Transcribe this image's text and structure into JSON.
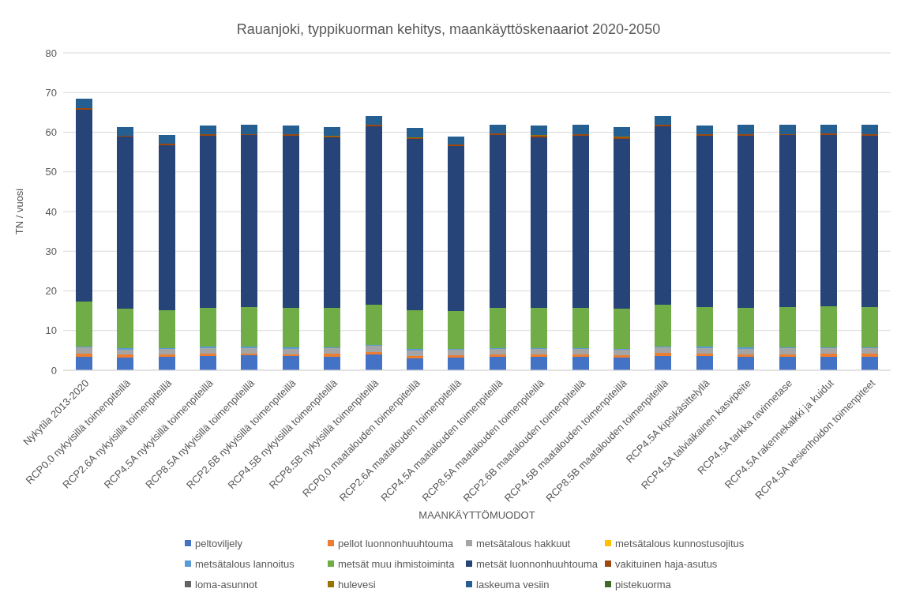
{
  "chart_data": {
    "type": "bar",
    "title": "Rauanjoki, typpikuorman kehitys, maankäyttöskenaariot 2020-2050",
    "xlabel": "MAANKÄYTTÖMUODOT",
    "ylabel": "TN / vuosi",
    "categories": [
      "Nykytila 2013-2020",
      "RCP0.0 nykyisillä toimenpiteillä",
      "RCP2.6A nykyisillä toimenpiteillä",
      "RCP4.5A nykyisillä toimenpiteillä",
      "RCP8.5A nykyisillä toimenpiteillä",
      "RCP2.6B nykyisillä toimenpiteillä",
      "RCP4.5B nykyisillä toimenpiteillä",
      "RCP8.5B nykyisillä toimenpiteillä",
      "RCP0.0 maatalouden toimenpiteillä",
      "RCP2.6A maatalouden toimenpiteillä",
      "RCP4.5A maatalouden toimenpiteillä",
      "RCP8.5A maatalouden toimenpiteillä",
      "RCP2.6B maatalouden toimenpiteillä",
      "RCP4.5B maatalouden toimenpiteillä",
      "RCP8.5B maatalouden toimenpiteillä",
      "RCP4.5A kipsikäsittelyllä",
      "RCP4.5A talviaikainen kasvipeite",
      "RCP4.5A tarkka ravinnetase",
      "RCP4.5A rakennekalkki ja kuidut",
      "RCP4.5A vesienhoidon toimenpiteet"
    ],
    "series": [
      {
        "name": "peltoviljely",
        "color": "#4472c4",
        "values": [
          3.3,
          3.1,
          3.4,
          3.5,
          3.7,
          3.5,
          3.4,
          4.0,
          3.0,
          3.2,
          3.3,
          3.3,
          3.3,
          3.1,
          3.6,
          3.5,
          3.3,
          3.4,
          3.4,
          3.4
        ]
      },
      {
        "name": "pellot luonnonhuuhtouma",
        "color": "#ed7d31",
        "values": [
          0.8,
          0.8,
          0.6,
          0.7,
          0.5,
          0.5,
          0.7,
          0.6,
          0.6,
          0.6,
          0.6,
          0.6,
          0.6,
          0.6,
          0.7,
          0.6,
          0.6,
          0.5,
          0.7,
          0.7
        ]
      },
      {
        "name": "metsätalous hakkuut",
        "color": "#a5a5a5",
        "values": [
          1.6,
          1.3,
          1.4,
          1.4,
          1.4,
          1.4,
          1.4,
          1.5,
          1.4,
          1.4,
          1.4,
          1.4,
          1.4,
          1.5,
          1.4,
          1.5,
          1.5,
          1.6,
          1.4,
          1.4
        ]
      },
      {
        "name": "metsätalous kunnostusojitus",
        "color": "#ffc000",
        "values": [
          null,
          null,
          null,
          null,
          null,
          null,
          null,
          null,
          null,
          null,
          null,
          null,
          null,
          null,
          null,
          null,
          null,
          null,
          null,
          null
        ]
      },
      {
        "name": "metsätalous lannoitus",
        "color": "#5b9bd5",
        "values": [
          0.3,
          0.3,
          0.2,
          0.3,
          0.3,
          0.3,
          0.3,
          0.3,
          0.3,
          0.2,
          0.3,
          0.3,
          0.3,
          0.2,
          0.3,
          0.3,
          0.3,
          0.3,
          0.3,
          0.3
        ]
      },
      {
        "name": "metsät muu ihmistoiminta",
        "color": "#70ad47",
        "values": [
          11.3,
          10.0,
          9.6,
          9.9,
          10.1,
          10.1,
          9.9,
          10.1,
          9.9,
          9.6,
          10.2,
          10.2,
          10.2,
          10.2,
          10.6,
          10.0,
          10.1,
          10.1,
          10.3,
          10.1
        ]
      },
      {
        "name": "metsät luonnonhuuhtouma",
        "color": "#264478",
        "values": [
          48.4,
          43.4,
          41.6,
          43.4,
          43.3,
          43.4,
          43.0,
          45.0,
          43.1,
          41.6,
          43.6,
          43.0,
          43.4,
          42.8,
          44.9,
          43.3,
          43.4,
          43.4,
          43.3,
          43.3
        ]
      },
      {
        "name": "vakituinen haja-asutus",
        "color": "#9e480e",
        "values": [
          0.3,
          0.3,
          0.3,
          0.3,
          0.3,
          0.3,
          0.3,
          0.3,
          0.3,
          0.3,
          0.3,
          0.3,
          0.3,
          0.3,
          0.3,
          0.3,
          0.3,
          0.3,
          0.3,
          0.3
        ]
      },
      {
        "name": "loma-asunnot",
        "color": "#636363",
        "values": [
          null,
          null,
          null,
          null,
          null,
          null,
          null,
          null,
          null,
          null,
          null,
          null,
          null,
          null,
          null,
          null,
          null,
          null,
          null,
          null
        ]
      },
      {
        "name": "hulevesi",
        "color": "#997300",
        "values": [
          null,
          null,
          null,
          null,
          null,
          null,
          0.2,
          null,
          0.2,
          null,
          null,
          0.2,
          null,
          0.2,
          null,
          null,
          null,
          null,
          null,
          null
        ]
      },
      {
        "name": "laskeuma vesiin",
        "color": "#255e91",
        "values": [
          2.4,
          2.1,
          2.2,
          2.1,
          2.2,
          2.1,
          2.1,
          2.2,
          2.2,
          2.1,
          2.2,
          2.3,
          2.3,
          2.3,
          2.3,
          2.1,
          2.3,
          2.2,
          2.2,
          2.3
        ]
      },
      {
        "name": "pistekuorma",
        "color": "#43682b",
        "values": [
          null,
          null,
          null,
          null,
          null,
          null,
          null,
          null,
          null,
          null,
          null,
          null,
          null,
          null,
          null,
          null,
          null,
          null,
          null,
          null
        ]
      }
    ],
    "stacked": true,
    "ylim": [
      0,
      80
    ],
    "yticks": [
      0,
      10,
      20,
      30,
      40,
      50,
      60,
      70,
      80
    ],
    "grid": "y",
    "legend": "bottom"
  }
}
